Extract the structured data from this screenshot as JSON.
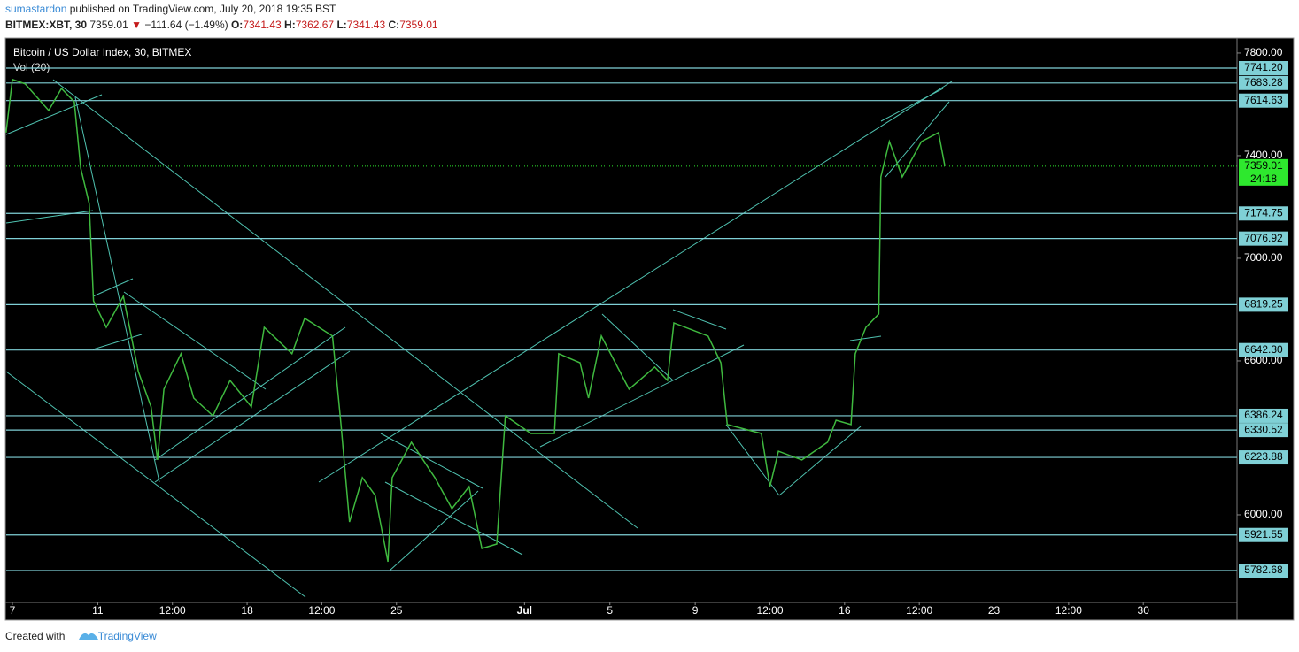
{
  "header": {
    "author": "sumastardon",
    "published": "published on TradingView.com, July 20, 2018 19:35 BST",
    "symbol": "BITMEX:XBT, 30",
    "last": "7359.01",
    "change": "−111.64 (−1.49%)",
    "o_label": "O:",
    "o": "7341.43",
    "h_label": "H:",
    "h": "7362.67",
    "l_label": "L:",
    "l": "7341.43",
    "c_label": "C:",
    "c": "7359.01"
  },
  "chart_data": {
    "type": "line",
    "title": "Bitcoin / US Dollar Index, 30, BITMEX",
    "subtitle": "Vol (20)",
    "color": "#3fb93f",
    "grid": false,
    "x": [
      -0.3,
      0,
      0.6,
      1.7,
      2.3,
      2.9,
      3.2,
      3.6,
      3.8,
      4.4,
      5.2,
      5.9,
      6.5,
      6.8,
      7.1,
      7.9,
      8.5,
      9.4,
      10.2,
      11.2,
      11.8,
      13.1,
      13.7,
      15.0,
      15.4,
      15.8,
      16.4,
      17.0,
      17.6,
      17.8,
      18.7,
      19.8,
      20.6,
      21.4,
      22.0,
      22.7,
      23.1,
      24.3,
      25.4,
      25.6,
      26.6,
      27.0,
      27.6,
      28.9,
      30.1,
      30.7,
      31.0,
      32.6,
      33.2,
      33.5,
      35.1,
      35.5,
      35.9,
      37.0,
      38.2,
      38.6,
      39.3,
      39.5,
      40.0,
      40.6,
      40.7,
      41.1,
      41.7,
      42.6,
      43.4,
      43.7
    ],
    "values": [
      7490,
      7697,
      7680,
      7576,
      7662,
      7610,
      7352,
      7214,
      6834,
      6731,
      6852,
      6559,
      6421,
      6214,
      6490,
      6628,
      6455,
      6386,
      6524,
      6421,
      6731,
      6628,
      6766,
      6697,
      6352,
      5972,
      6145,
      6076,
      5817,
      6145,
      6283,
      6145,
      6024,
      6110,
      5869,
      5886,
      6386,
      6317,
      6317,
      6628,
      6593,
      6455,
      6697,
      6490,
      6576,
      6524,
      6748,
      6697,
      6593,
      6352,
      6317,
      6110,
      6248,
      6214,
      6283,
      6369,
      6352,
      6628,
      6731,
      6783,
      7317,
      7455,
      7317,
      7455,
      7490,
      7359.01
    ],
    "xlim": [
      -0.29,
      57.39
    ],
    "ylim": [
      5662,
      7855
    ],
    "xticks": [
      {
        "value": 0,
        "label": "7"
      },
      {
        "value": 4,
        "label": "11"
      },
      {
        "value": 7.5,
        "label": "12:00"
      },
      {
        "value": 11,
        "label": "18"
      },
      {
        "value": 14.5,
        "label": "12:00"
      },
      {
        "value": 18,
        "label": "25"
      },
      {
        "value": 24,
        "label": "Jul"
      },
      {
        "value": 28,
        "label": "5"
      },
      {
        "value": 32,
        "label": "9"
      },
      {
        "value": 35.5,
        "label": "12:00"
      },
      {
        "value": 39,
        "label": "16"
      },
      {
        "value": 42.5,
        "label": "12:00"
      },
      {
        "value": 46,
        "label": "23"
      },
      {
        "value": 49.5,
        "label": "12:00"
      },
      {
        "value": 53,
        "label": "30"
      }
    ],
    "yticks": [
      {
        "value": 6000,
        "label": "6000.00"
      },
      {
        "value": 6600,
        "label": "6600.00"
      },
      {
        "value": 7000,
        "label": "7000.00"
      },
      {
        "value": 7400,
        "label": "7400.00"
      },
      {
        "value": 7800,
        "label": "7800.00"
      }
    ],
    "levels": [
      {
        "value": 7741.2,
        "label": "7741.20"
      },
      {
        "value": 7683.28,
        "label": "7683.28"
      },
      {
        "value": 7614.63,
        "label": "7614.63"
      },
      {
        "value": 7174.75,
        "label": "7174.75"
      },
      {
        "value": 7076.92,
        "label": "7076.92"
      },
      {
        "value": 6819.25,
        "label": "6819.25"
      },
      {
        "value": 6642.3,
        "label": "6642.30"
      },
      {
        "value": 6386.24,
        "label": "6386.24"
      },
      {
        "value": 6330.52,
        "label": "6330.52"
      },
      {
        "value": 6223.88,
        "label": "6223.88"
      },
      {
        "value": 5921.55,
        "label": "5921.55"
      },
      {
        "value": 5782.68,
        "label": "5782.68"
      }
    ],
    "level_color": "#7fd0d6",
    "current": {
      "value": 7359.01,
      "label": "7359.01",
      "countdown": "24:18",
      "color": "#2ee82e"
    }
  },
  "footer": {
    "created": "Created with",
    "brand": "TradingView"
  }
}
